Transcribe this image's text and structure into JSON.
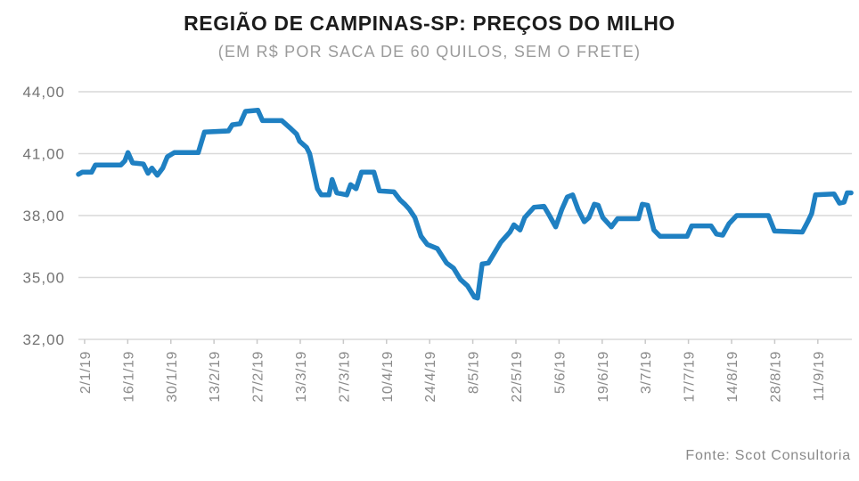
{
  "title": "REGIÃO DE CAMPINAS-SP: PREÇOS DO MILHO",
  "subtitle": "(EM R$ POR SACA DE 60 QUILOS, SEM O FRETE)",
  "source": "Fonte: Scot Consultoria",
  "colors": {
    "line": "#1f80c2",
    "grid": "#d9d9d9",
    "tick": "#c9c9c9",
    "title_text": "#1c1c1c",
    "subtitle_text": "#9b9b9b",
    "axis_text": "#737373",
    "x_axis_text": "#8a8a8a",
    "source_text": "#8a8a8a"
  },
  "chart_data": {
    "type": "line",
    "title": "REGIÃO DE CAMPINAS-SP: PREÇOS DO MILHO",
    "subtitle": "(EM R$ POR SACA DE 60 QUILOS, SEM O FRETE)",
    "unit": "R$ por saca de 60 quilos, sem o frete",
    "grid": "horizontal",
    "legend": "none",
    "ylim": [
      32,
      44
    ],
    "y_ticks": [
      {
        "value": 44,
        "label": "44,00"
      },
      {
        "value": 41,
        "label": "41,00"
      },
      {
        "value": 38,
        "label": "38,00"
      },
      {
        "value": 35,
        "label": "35,00"
      },
      {
        "value": 32,
        "label": "32,00"
      }
    ],
    "x_tick_labels": [
      "2/1/19",
      "16/1/19",
      "30/1/19",
      "13/2/19",
      "27/2/19",
      "13/3/19",
      "27/3/19",
      "10/4/19",
      "24/4/19",
      "8/5/19",
      "22/5/19",
      "5/6/19",
      "19/6/19",
      "3/7/19",
      "17/7/19",
      "14/8/19",
      "28/8/19",
      "11/9/19"
    ],
    "x_first_pct": 0.8,
    "x_last_pct": 95.6,
    "series": [
      {
        "name": "Preço do milho (R$/saca de 60 kg)",
        "points": [
          [
            0,
            40.0
          ],
          [
            0.5,
            40.1
          ],
          [
            1.7,
            40.1
          ],
          [
            2.2,
            40.45
          ],
          [
            5.5,
            40.45
          ],
          [
            6.0,
            40.65
          ],
          [
            6.4,
            41.05
          ],
          [
            7.0,
            40.55
          ],
          [
            8.4,
            40.5
          ],
          [
            9.0,
            40.05
          ],
          [
            9.5,
            40.3
          ],
          [
            10.2,
            39.95
          ],
          [
            10.9,
            40.3
          ],
          [
            11.5,
            40.85
          ],
          [
            12.4,
            41.05
          ],
          [
            15.5,
            41.05
          ],
          [
            16.3,
            42.05
          ],
          [
            19.4,
            42.1
          ],
          [
            19.9,
            42.4
          ],
          [
            20.9,
            42.45
          ],
          [
            21.6,
            43.05
          ],
          [
            23.2,
            43.1
          ],
          [
            23.8,
            42.6
          ],
          [
            26.3,
            42.6
          ],
          [
            27.5,
            42.2
          ],
          [
            28.2,
            41.95
          ],
          [
            28.6,
            41.6
          ],
          [
            29.5,
            41.3
          ],
          [
            29.9,
            41.0
          ],
          [
            30.9,
            39.3
          ],
          [
            31.4,
            39.0
          ],
          [
            32.4,
            39.0
          ],
          [
            32.8,
            39.75
          ],
          [
            33.4,
            39.1
          ],
          [
            34.7,
            39.0
          ],
          [
            35.2,
            39.5
          ],
          [
            35.9,
            39.3
          ],
          [
            36.6,
            40.1
          ],
          [
            38.2,
            40.1
          ],
          [
            38.9,
            39.2
          ],
          [
            40.8,
            39.15
          ],
          [
            41.6,
            38.75
          ],
          [
            42.2,
            38.55
          ],
          [
            42.8,
            38.3
          ],
          [
            43.5,
            37.9
          ],
          [
            44.3,
            37.0
          ],
          [
            45.1,
            36.6
          ],
          [
            46.4,
            36.4
          ],
          [
            47.6,
            35.7
          ],
          [
            48.5,
            35.45
          ],
          [
            49.4,
            34.9
          ],
          [
            50.3,
            34.6
          ],
          [
            51.2,
            34.05
          ],
          [
            51.6,
            34.0
          ],
          [
            52.2,
            35.65
          ],
          [
            53.0,
            35.7
          ],
          [
            53.8,
            36.2
          ],
          [
            54.6,
            36.7
          ],
          [
            55.8,
            37.2
          ],
          [
            56.3,
            37.55
          ],
          [
            57.1,
            37.3
          ],
          [
            57.7,
            37.9
          ],
          [
            58.9,
            38.4
          ],
          [
            60.2,
            38.45
          ],
          [
            60.9,
            38.0
          ],
          [
            61.7,
            37.45
          ],
          [
            62.5,
            38.3
          ],
          [
            63.2,
            38.9
          ],
          [
            63.9,
            39.0
          ],
          [
            64.6,
            38.3
          ],
          [
            65.4,
            37.7
          ],
          [
            66.0,
            37.9
          ],
          [
            66.7,
            38.55
          ],
          [
            67.2,
            38.5
          ],
          [
            67.8,
            37.9
          ],
          [
            68.9,
            37.45
          ],
          [
            69.7,
            37.85
          ],
          [
            72.4,
            37.85
          ],
          [
            72.9,
            38.55
          ],
          [
            73.6,
            38.5
          ],
          [
            74.4,
            37.3
          ],
          [
            75.2,
            37.0
          ],
          [
            78.7,
            37.0
          ],
          [
            79.3,
            37.5
          ],
          [
            81.8,
            37.5
          ],
          [
            82.5,
            37.1
          ],
          [
            83.3,
            37.05
          ],
          [
            84.1,
            37.6
          ],
          [
            85.1,
            38.0
          ],
          [
            89.2,
            38.0
          ],
          [
            90.0,
            37.25
          ],
          [
            93.6,
            37.2
          ],
          [
            94.3,
            37.7
          ],
          [
            94.8,
            38.1
          ],
          [
            95.3,
            39.0
          ],
          [
            97.7,
            39.05
          ],
          [
            98.4,
            38.6
          ],
          [
            99.0,
            38.65
          ],
          [
            99.4,
            39.1
          ],
          [
            99.9,
            39.1
          ]
        ]
      }
    ]
  }
}
